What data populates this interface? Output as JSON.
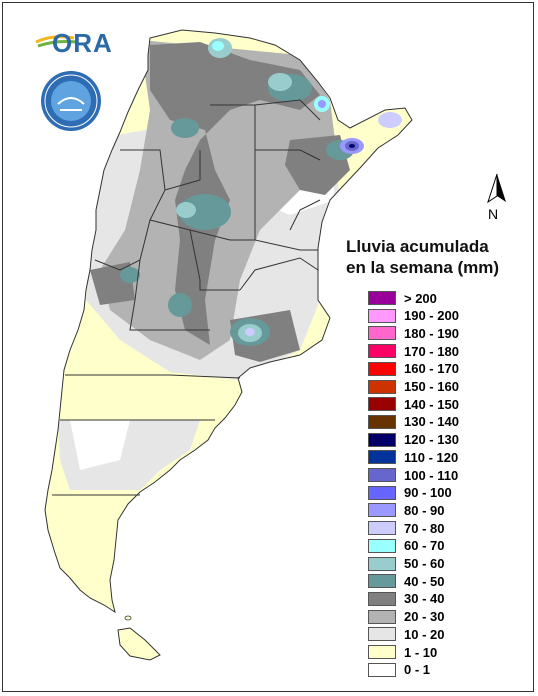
{
  "logo": {
    "text": "ORA",
    "icon": "ora-logo-icon"
  },
  "seal": {
    "icon": "agency-seal-icon"
  },
  "north_arrow": {
    "label": "N",
    "icon": "north-arrow-icon"
  },
  "legend": {
    "title_line1": "Lluvia acumulada",
    "title_line2": "en la semana (mm)",
    "items": [
      {
        "label": "> 200",
        "color": "#990099"
      },
      {
        "label": "190 - 200",
        "color": "#ff99ff"
      },
      {
        "label": "180 - 190",
        "color": "#ff66cc"
      },
      {
        "label": "170 - 180",
        "color": "#ff0066"
      },
      {
        "label": "160 - 170",
        "color": "#ff0000"
      },
      {
        "label": "150 - 160",
        "color": "#cc3300"
      },
      {
        "label": "140 - 150",
        "color": "#990000"
      },
      {
        "label": "130 - 140",
        "color": "#663300"
      },
      {
        "label": "120 - 130",
        "color": "#000066"
      },
      {
        "label": "110 - 120",
        "color": "#003399"
      },
      {
        "label": "100 - 110",
        "color": "#6666cc"
      },
      {
        "label": "90 - 100",
        "color": "#6666ff"
      },
      {
        "label": "80 - 90",
        "color": "#9999ff"
      },
      {
        "label": "70 - 80",
        "color": "#ccccff"
      },
      {
        "label": "60 - 70",
        "color": "#99ffff"
      },
      {
        "label": "50 - 60",
        "color": "#99cccc"
      },
      {
        "label": "40 - 50",
        "color": "#669999"
      },
      {
        "label": "30 - 40",
        "color": "#808080"
      },
      {
        "label": "20 - 30",
        "color": "#b3b3b3"
      },
      {
        "label": "10 - 20",
        "color": "#e6e6e6"
      },
      {
        "label": "1 - 10",
        "color": "#ffffcc"
      },
      {
        "label": "0 - 1",
        "color": "#ffffff"
      }
    ]
  }
}
